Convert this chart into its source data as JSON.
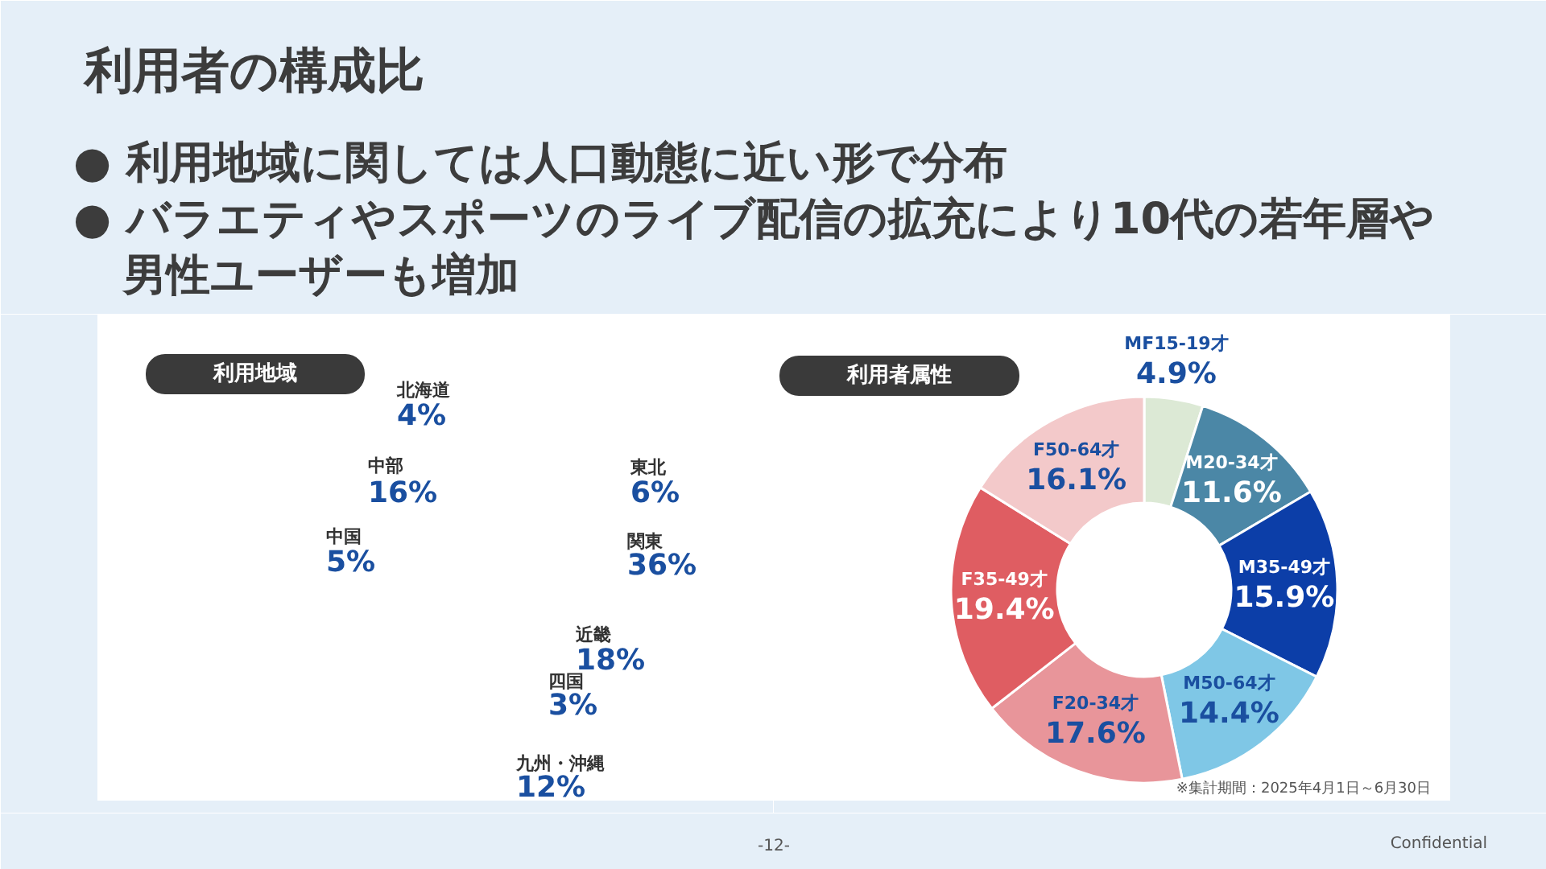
{
  "chart_data": [
    {
      "type": "other",
      "title": "利用者の構成比",
      "annotations": [
        "● 利用地域に関しては人口動態に近い形で分布",
        "● バラエティやスポーツのライブ配信の拡充により10代の若年層や男性ユーザーも増加",
        "-12-",
        "Confidential"
      ]
    },
    {
      "type": "other",
      "title": "利用地域",
      "categories": [
        "北海道",
        "東北",
        "関東",
        "中部",
        "近畿",
        "中国",
        "四国",
        "九州・沖縄"
      ],
      "values": [
        4,
        6,
        36,
        16,
        18,
        5,
        3,
        12
      ],
      "value_labels": [
        "4%",
        "6%",
        "36%",
        "16%",
        "18%",
        "5%",
        "3%",
        "12%"
      ]
    },
    {
      "type": "donut",
      "title": "利用者属性",
      "categories": [
        "MF15-19才",
        "M20-34才",
        "M35-49才",
        "M50-64才",
        "F20-34才",
        "F35-49才",
        "F50-64才"
      ],
      "values": [
        4.9,
        11.6,
        15.9,
        14.4,
        17.6,
        19.4,
        16.1
      ],
      "colors": [
        "#dce9d5",
        "#4b87a6",
        "#0c3ea8",
        "#7fc7e6",
        "#e8959a",
        "#df5d62",
        "#f3c9ca"
      ],
      "value_labels": [
        "4.9%",
        "11.6%",
        "15.9%",
        "14.4%",
        "17.6%",
        "19.4%",
        "16.1%"
      ],
      "annotations": [
        "※集計期間：2025年4月1日～6月30日"
      ]
    }
  ]
}
